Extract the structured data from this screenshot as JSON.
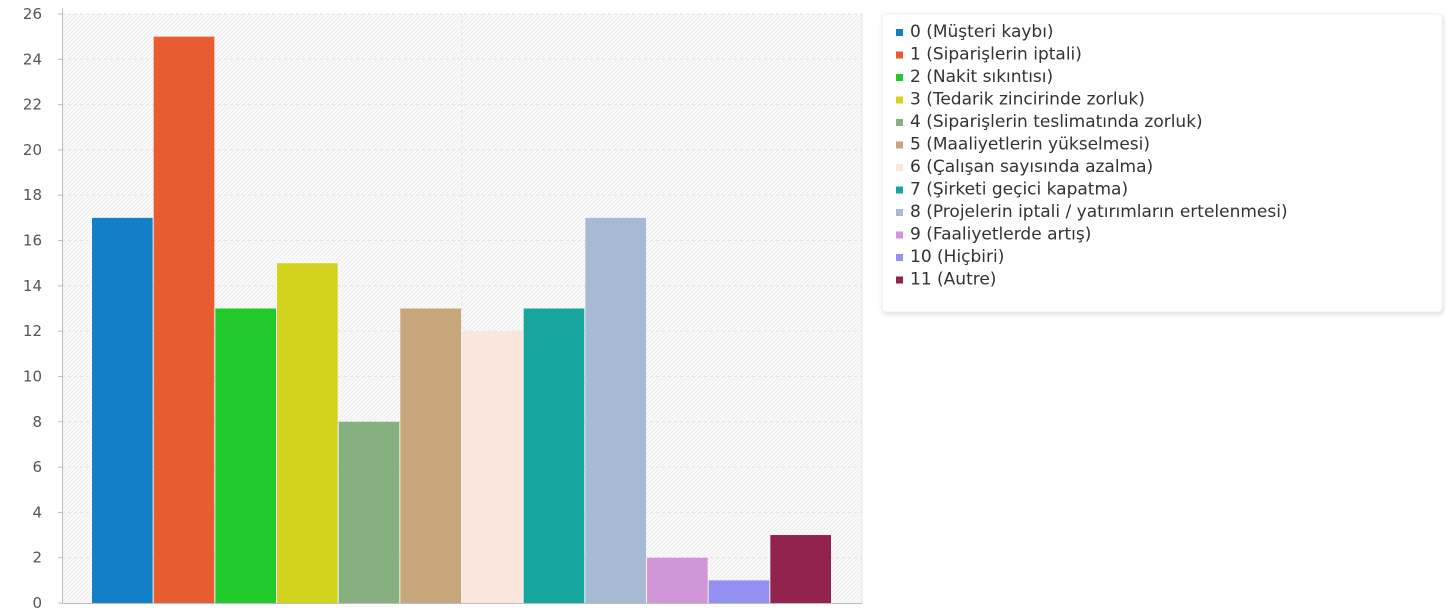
{
  "chart_data": {
    "type": "bar",
    "categories": [
      "0",
      "1",
      "2",
      "3",
      "4",
      "5",
      "6",
      "7",
      "8",
      "9",
      "10",
      "11"
    ],
    "series": [
      {
        "name": "0 (Müşteri kaybı)",
        "value": 17,
        "color": "#137fc9"
      },
      {
        "name": "1 (Siparişlerin iptali)",
        "value": 25,
        "color": "#e85d2f"
      },
      {
        "name": "2 (Nakit sıkıntısı)",
        "value": 13,
        "color": "#22c92a"
      },
      {
        "name": "3 (Tedarik zincirinde zorluk)",
        "value": 15,
        "color": "#d3d31d"
      },
      {
        "name": "4 (Siparişlerin teslimatında zorluk)",
        "value": 8,
        "color": "#86b07f"
      },
      {
        "name": "5 (Maaliyetlerin yükselmesi)",
        "value": 13,
        "color": "#c8a67c"
      },
      {
        "name": "6 (Çalışan sayısında azalma)",
        "value": 12,
        "color": "#fae6dd"
      },
      {
        "name": "7 (Şirketi geçici kapatma)",
        "value": 13,
        "color": "#17a69d"
      },
      {
        "name": "8 (Projelerin iptali / yatırımların ertelenmesi)",
        "value": 17,
        "color": "#a7bad5"
      },
      {
        "name": "9 (Faaliyetlerde artış)",
        "value": 2,
        "color": "#d295d8"
      },
      {
        "name": "10 (Hiçbiri)",
        "value": 1,
        "color": "#9490f2"
      },
      {
        "name": "11 (Autre)",
        "value": 3,
        "color": "#92234f"
      }
    ],
    "yticks": [
      0,
      2,
      4,
      6,
      8,
      10,
      12,
      14,
      16,
      18,
      20,
      22,
      24,
      26
    ],
    "ylim": [
      0,
      26
    ],
    "title": "",
    "xlabel": "",
    "ylabel": "",
    "grid": true,
    "legend_position": "right"
  }
}
